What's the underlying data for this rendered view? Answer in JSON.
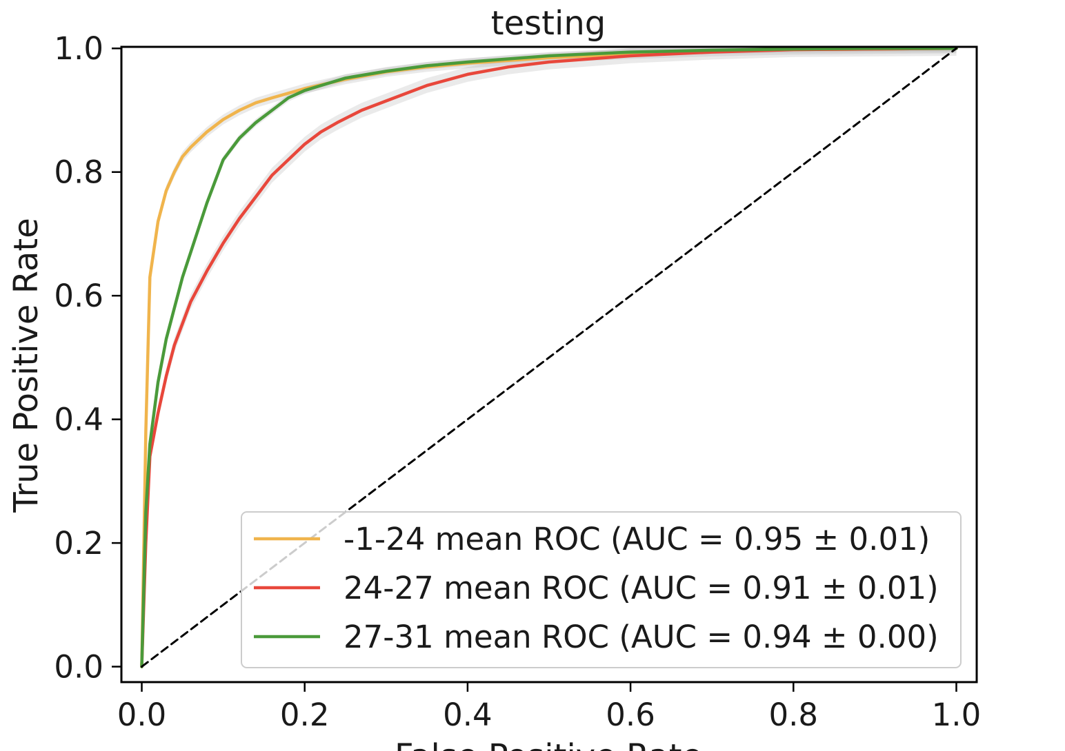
{
  "chart_data": {
    "type": "line",
    "title": "testing",
    "xlabel": "False Positive Rate",
    "ylabel": "True Positive Rate",
    "xlim": [
      -0.025,
      1.025
    ],
    "ylim": [
      -0.025,
      1.0025
    ],
    "xticks": [
      0.0,
      0.2,
      0.4,
      0.6,
      0.8,
      1.0
    ],
    "yticks": [
      0.0,
      0.2,
      0.4,
      0.6,
      0.8,
      1.0
    ],
    "xtick_labels": [
      "0.0",
      "0.2",
      "0.4",
      "0.6",
      "0.8",
      "1.0"
    ],
    "ytick_labels": [
      "0.0",
      "0.2",
      "0.4",
      "0.6",
      "0.8",
      "1.0"
    ],
    "grid": false,
    "legend_position": "lower-right",
    "series": [
      {
        "name": "-1-24 mean ROC (AUC = 0.95 ± 0.01)",
        "color": "#f0b44c",
        "band_halfwidth": 0.008,
        "x": [
          0.0,
          0.005,
          0.01,
          0.02,
          0.03,
          0.04,
          0.05,
          0.06,
          0.08,
          0.1,
          0.12,
          0.14,
          0.16,
          0.2,
          0.25,
          0.3,
          0.35,
          0.4,
          0.5,
          0.6,
          0.7,
          0.8,
          0.9,
          1.0
        ],
        "y": [
          0.0,
          0.38,
          0.63,
          0.72,
          0.77,
          0.8,
          0.825,
          0.84,
          0.865,
          0.885,
          0.9,
          0.912,
          0.92,
          0.935,
          0.95,
          0.962,
          0.97,
          0.976,
          0.985,
          0.991,
          0.995,
          0.998,
          0.999,
          1.0
        ]
      },
      {
        "name": "24-27 mean ROC (AUC = 0.91 ± 0.01)",
        "color": "#e8473b",
        "band_halfwidth": 0.012,
        "x": [
          0.0,
          0.005,
          0.01,
          0.02,
          0.03,
          0.04,
          0.05,
          0.06,
          0.08,
          0.1,
          0.12,
          0.14,
          0.16,
          0.18,
          0.2,
          0.22,
          0.24,
          0.27,
          0.3,
          0.35,
          0.4,
          0.45,
          0.5,
          0.6,
          0.7,
          0.8,
          0.9,
          1.0
        ],
        "y": [
          0.0,
          0.2,
          0.34,
          0.41,
          0.47,
          0.52,
          0.555,
          0.59,
          0.64,
          0.685,
          0.725,
          0.76,
          0.795,
          0.82,
          0.845,
          0.865,
          0.88,
          0.9,
          0.915,
          0.94,
          0.958,
          0.97,
          0.978,
          0.988,
          0.994,
          0.998,
          0.999,
          1.0
        ]
      },
      {
        "name": "27-31 mean ROC (AUC = 0.94 ± 0.00)",
        "color": "#4a9a3a",
        "band_halfwidth": 0.006,
        "x": [
          0.0,
          0.005,
          0.01,
          0.02,
          0.03,
          0.04,
          0.05,
          0.06,
          0.08,
          0.1,
          0.12,
          0.14,
          0.16,
          0.18,
          0.2,
          0.22,
          0.25,
          0.3,
          0.35,
          0.4,
          0.5,
          0.6,
          0.7,
          0.8,
          0.9,
          1.0
        ],
        "y": [
          0.0,
          0.25,
          0.36,
          0.46,
          0.53,
          0.58,
          0.63,
          0.67,
          0.75,
          0.82,
          0.855,
          0.88,
          0.9,
          0.92,
          0.932,
          0.94,
          0.952,
          0.963,
          0.972,
          0.978,
          0.988,
          0.994,
          0.997,
          0.999,
          1.0,
          1.0
        ]
      },
      {
        "name": "",
        "color": "#000000",
        "dashed": true,
        "x": [
          0.0,
          1.0
        ],
        "y": [
          0.0,
          1.0
        ]
      }
    ]
  }
}
